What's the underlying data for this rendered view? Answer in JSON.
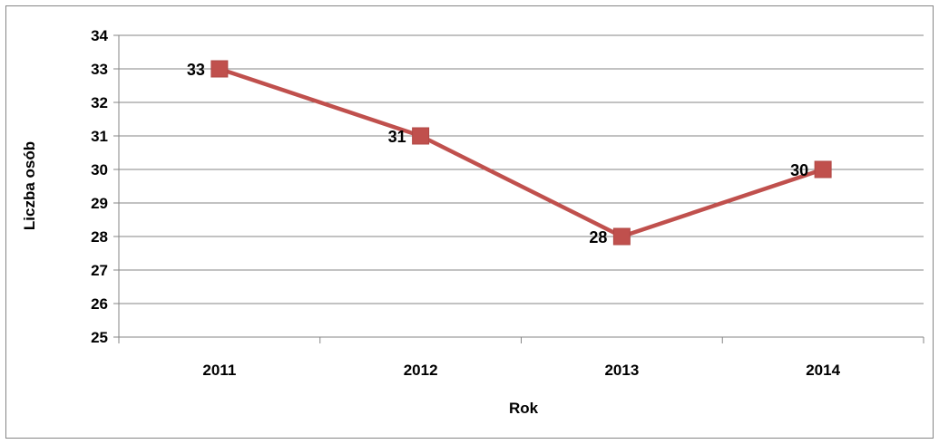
{
  "chart_data": {
    "type": "line",
    "categories": [
      "2011",
      "2012",
      "2013",
      "2014"
    ],
    "series": [
      {
        "values": [
          33,
          31,
          28,
          30
        ],
        "color": "#c0504d"
      }
    ],
    "xlabel": "Rok",
    "ylabel": "Liczba osób",
    "ylim": [
      25,
      34
    ],
    "yticks": [
      "25",
      "26",
      "27",
      "28",
      "29",
      "30",
      "31",
      "32",
      "33",
      "34"
    ],
    "data_labels": [
      "33",
      "31",
      "28",
      "30"
    ],
    "grid": true,
    "legend": "none",
    "marker": "square"
  }
}
